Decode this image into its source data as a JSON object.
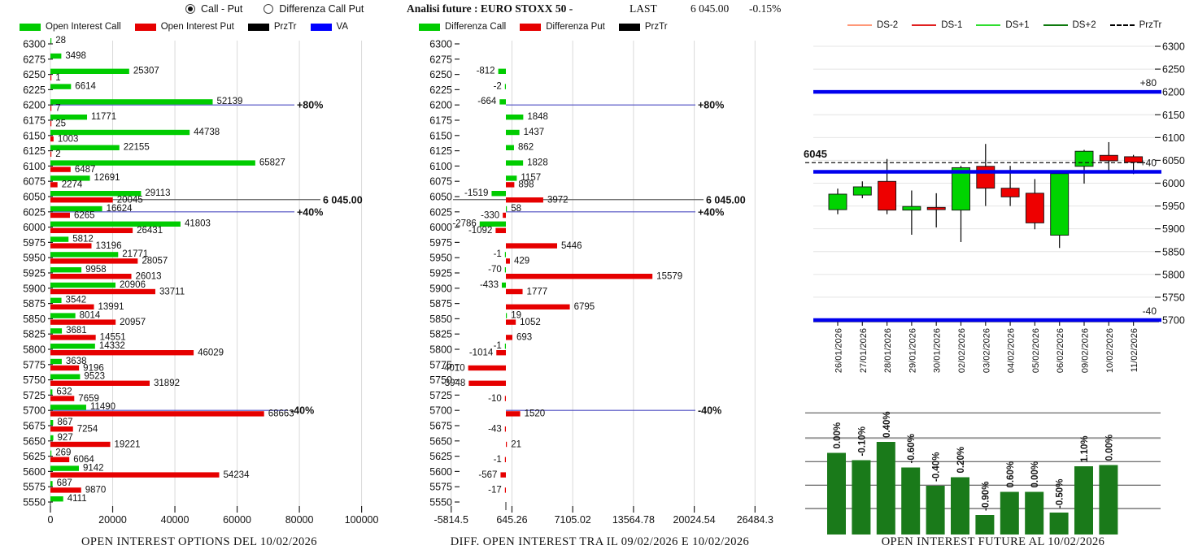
{
  "header": {
    "radios": [
      {
        "label": "Call - Put",
        "selected": true
      },
      {
        "label": "Differenza Call Put",
        "selected": false
      }
    ],
    "title": "Analisi future : EURO STOXX 50 -",
    "last_label": "LAST",
    "last_value": "6 045.00",
    "last_change": "-0.15%"
  },
  "legends": {
    "options": [
      {
        "label": "Open Interest Call",
        "color": "#00CC00"
      },
      {
        "label": "Open Interest Put",
        "color": "#E60000"
      },
      {
        "label": "PrzTr",
        "color": "#000000"
      },
      {
        "label": "VA",
        "color": "#0000FF"
      }
    ],
    "diff": [
      {
        "label": "Differenza Call",
        "color": "#00CC00"
      },
      {
        "label": "Differenza Put",
        "color": "#E60000"
      },
      {
        "label": "PrzTr",
        "color": "#000000"
      }
    ],
    "future": [
      {
        "label": "DS-2",
        "color": "#FF9878",
        "style": "solid"
      },
      {
        "label": "DS-1",
        "color": "#E02020",
        "style": "solid"
      },
      {
        "label": "DS+1",
        "color": "#30DD30",
        "style": "solid"
      },
      {
        "label": "DS+2",
        "color": "#0E7A0E",
        "style": "solid"
      },
      {
        "label": "PrzTr",
        "color": "#000000",
        "style": "dashed"
      }
    ]
  },
  "captions": {
    "options": "OPEN INTEREST OPTIONS DEL 10/02/2026",
    "diff": "DIFF. OPEN INTEREST TRA IL 09/02/2026 E 10/02/2026",
    "future": "OPEN INTEREST FUTURE AL 10/02/2026"
  },
  "colors": {
    "call_green": "#00CC00",
    "put_red": "#E60000",
    "va_blue": "#0000EE",
    "strike_line_blue": "#4A4AC0",
    "prztr_gray": "#606060",
    "future_bar_green": "#1A7A1A",
    "grid_gray": "#D9D9D9"
  },
  "chart_data": [
    {
      "id": "options_oi",
      "type": "bar",
      "orientation": "horizontal",
      "title": "OPEN INTEREST OPTIONS DEL 10/02/2026",
      "columns": [
        "strike",
        "call",
        "put"
      ],
      "xlim": [
        0,
        100000
      ],
      "xticks": [
        0,
        20000,
        40000,
        60000,
        80000,
        100000
      ],
      "rows": [
        [
          6300,
          28,
          null
        ],
        [
          6275,
          3498,
          null
        ],
        [
          6250,
          25307,
          1
        ],
        [
          6225,
          6614,
          null
        ],
        [
          6200,
          52139,
          7
        ],
        [
          6175,
          11771,
          25
        ],
        [
          6150,
          44738,
          1003
        ],
        [
          6125,
          22155,
          2
        ],
        [
          6100,
          65827,
          6487
        ],
        [
          6075,
          12691,
          2274
        ],
        [
          6050,
          29113,
          20045
        ],
        [
          6025,
          16624,
          6265
        ],
        [
          6000,
          41803,
          26431
        ],
        [
          5975,
          5812,
          13196
        ],
        [
          5950,
          21771,
          28057
        ],
        [
          5925,
          9958,
          26013
        ],
        [
          5900,
          20906,
          33711
        ],
        [
          5875,
          3542,
          13991
        ],
        [
          5850,
          8014,
          20957
        ],
        [
          5825,
          3681,
          14551
        ],
        [
          5800,
          14332,
          46029
        ],
        [
          5775,
          3638,
          9196
        ],
        [
          5750,
          9523,
          31892
        ],
        [
          5725,
          632,
          7659
        ],
        [
          5700,
          11490,
          68663
        ],
        [
          5675,
          867,
          7254
        ],
        [
          5650,
          927,
          19221
        ],
        [
          5625,
          269,
          6064
        ],
        [
          5600,
          9142,
          54234
        ],
        [
          5575,
          687,
          9870
        ],
        [
          5550,
          4111,
          null
        ]
      ],
      "markers": [
        {
          "price": 6200,
          "label": "+80%",
          "kind": "va"
        },
        {
          "price": 6045,
          "label": "6 045.00",
          "kind": "prztr"
        },
        {
          "price": 6025,
          "label": "+40%",
          "kind": "va"
        },
        {
          "price": 5700,
          "label": "-40%",
          "kind": "va"
        }
      ]
    },
    {
      "id": "diff_oi",
      "type": "bar",
      "orientation": "horizontal",
      "title": "DIFF. OPEN INTEREST TRA IL 09/02/2026 E 10/02/2026",
      "columns": [
        "strike",
        "diff_call",
        "diff_put"
      ],
      "xlim": [
        -5814.5,
        26484.3
      ],
      "xticks": [
        -5814.5,
        645.26,
        7105.02,
        13564.78,
        20024.54,
        26484.3
      ],
      "rows": [
        [
          6300,
          null,
          null
        ],
        [
          6275,
          null,
          null
        ],
        [
          6250,
          -812,
          null
        ],
        [
          6225,
          -2,
          null
        ],
        [
          6200,
          -664,
          null
        ],
        [
          6175,
          1848,
          null
        ],
        [
          6150,
          1437,
          null
        ],
        [
          6125,
          862,
          null
        ],
        [
          6100,
          1828,
          null
        ],
        [
          6075,
          1157,
          898
        ],
        [
          6050,
          -1519,
          3972
        ],
        [
          6025,
          58,
          -330
        ],
        [
          6000,
          -2786,
          -1092
        ],
        [
          5975,
          null,
          5446
        ],
        [
          5950,
          -1,
          429
        ],
        [
          5925,
          -70,
          15579
        ],
        [
          5900,
          -433,
          1777
        ],
        [
          5875,
          null,
          6795
        ],
        [
          5850,
          19,
          1052
        ],
        [
          5825,
          null,
          693
        ],
        [
          5800,
          -1,
          -1014
        ],
        [
          5775,
          null,
          -4010
        ],
        [
          5750,
          null,
          -3948
        ],
        [
          5725,
          null,
          -10
        ],
        [
          5700,
          null,
          1520
        ],
        [
          5675,
          null,
          -43
        ],
        [
          5650,
          null,
          21
        ],
        [
          5625,
          null,
          -1
        ],
        [
          5600,
          null,
          -567
        ],
        [
          5575,
          null,
          -17
        ],
        [
          5550,
          null,
          null
        ]
      ],
      "markers": [
        {
          "price": 6200,
          "label": "+80%",
          "kind": "va"
        },
        {
          "price": 6045,
          "label": "6 045.00",
          "kind": "prztr"
        },
        {
          "price": 6025,
          "label": "+40%",
          "kind": "va"
        },
        {
          "price": 5700,
          "label": "-40%",
          "kind": "va"
        }
      ]
    },
    {
      "id": "future_candles",
      "type": "candlestick",
      "ylim": [
        5700,
        6300
      ],
      "ytick_step": 50,
      "dates": [
        "26/01/2026",
        "27/01/2026",
        "28/01/2026",
        "29/01/2026",
        "30/01/2026",
        "02/02/2026",
        "03/02/2026",
        "04/02/2026",
        "05/02/2026",
        "06/02/2026",
        "09/02/2026",
        "10/02/2026",
        "11/02/2026"
      ],
      "ohlc": [
        [
          5942,
          5988,
          5932,
          5976
        ],
        [
          5974,
          6004,
          5967,
          5992
        ],
        [
          6004,
          6053,
          5932,
          5941
        ],
        [
          5941,
          5984,
          5887,
          5949
        ],
        [
          5947,
          5978,
          5903,
          5942
        ],
        [
          5941,
          6038,
          5871,
          6034
        ],
        [
          6037,
          6086,
          5950,
          5989
        ],
        [
          5989,
          6038,
          5950,
          5970
        ],
        [
          5978,
          6009,
          5899,
          5913
        ],
        [
          5886,
          6022,
          5858,
          6021
        ],
        [
          6037,
          6073,
          5999,
          6070
        ],
        [
          6061,
          6090,
          6022,
          6049
        ],
        [
          6058,
          6062,
          6020,
          6046
        ]
      ],
      "hlines": [
        {
          "price": 6200,
          "label": "+80",
          "color": "#0000EE"
        },
        {
          "price": 6025,
          "label": "+40",
          "color": "#0000EE"
        },
        {
          "price": 5700,
          "label": "-40",
          "color": "#0000EE"
        }
      ],
      "prztr": {
        "price": 6045,
        "label": "6045"
      }
    },
    {
      "id": "future_oi",
      "type": "bar",
      "title": "OPEN INTEREST FUTURE AL 10/02/2026",
      "pct_labels": [
        "0.00%",
        "-0.10%",
        "0.40%",
        "-0.60%",
        "-0.40%",
        "0.20%",
        "-0.90%",
        "0.60%",
        "0.00%",
        "-0.50%",
        "1.10%",
        "0.00%"
      ],
      "relative_heights": [
        0.67,
        0.61,
        0.76,
        0.55,
        0.4,
        0.47,
        0.16,
        0.35,
        0.35,
        0.18,
        0.56,
        0.57
      ],
      "bar_color": "#1A7A1A"
    }
  ]
}
